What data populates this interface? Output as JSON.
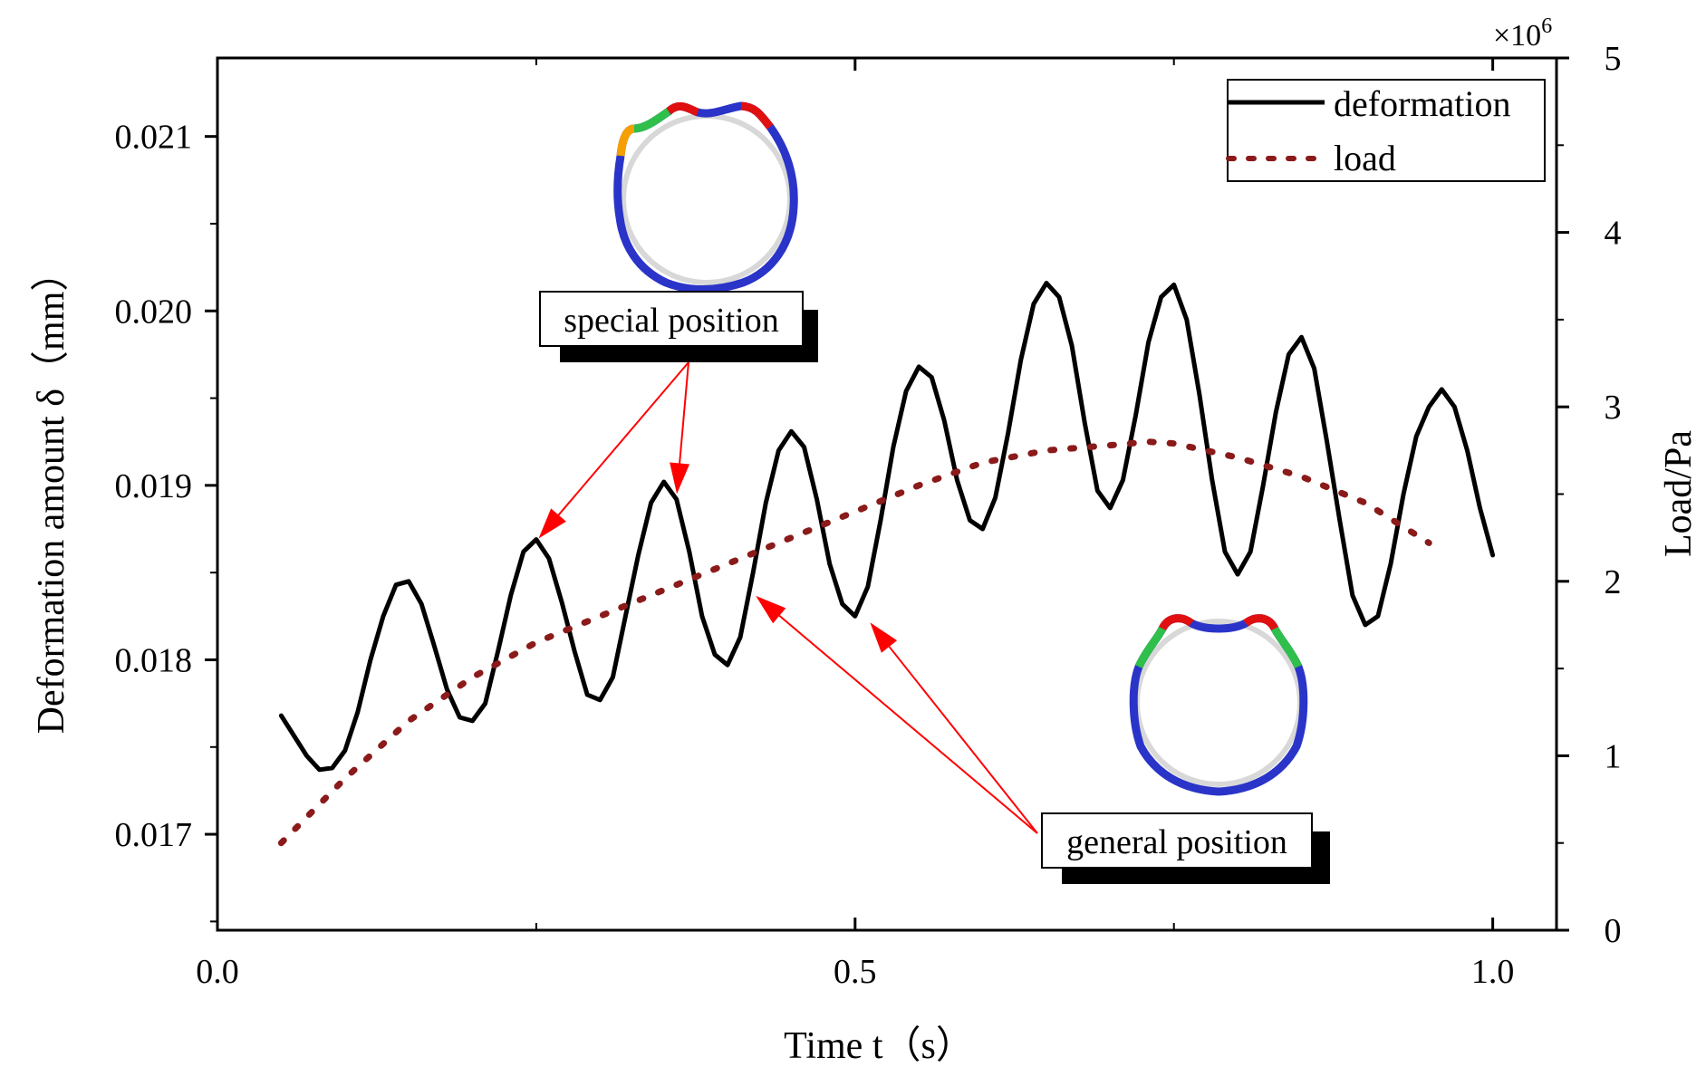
{
  "chart_data": {
    "type": "line",
    "title": "",
    "xlabel": "Time t（s）",
    "ylabel": "Deformation amount δ（mm）",
    "y2label": "Load/Pa",
    "y2_multiplier": "×10",
    "y2_multiplier_exp": "6",
    "xlim": [
      0.0,
      1.05
    ],
    "ylim": [
      0.01645,
      0.02145
    ],
    "y2lim": [
      0,
      5
    ],
    "xticks": [
      0.0,
      0.5,
      1.0
    ],
    "xtick_labels": [
      "0.0",
      "0.5",
      "1.0"
    ],
    "yticks": [
      0.017,
      0.018,
      0.019,
      0.02,
      0.021
    ],
    "ytick_labels": [
      "0.017",
      "0.018",
      "0.019",
      "0.020",
      "0.021"
    ],
    "y2ticks": [
      0,
      1,
      2,
      3,
      4,
      5
    ],
    "y2tick_labels": [
      "0",
      "1",
      "2",
      "3",
      "4",
      "5"
    ],
    "legend_position": "top-right",
    "series": [
      {
        "name": "deformation",
        "axis": "left",
        "style": "solid",
        "color": "#000000",
        "points": [
          [
            0.05,
            0.01768
          ],
          [
            0.07,
            0.01745
          ],
          [
            0.08,
            0.01737
          ],
          [
            0.09,
            0.01738
          ],
          [
            0.1,
            0.01748
          ],
          [
            0.11,
            0.0177
          ],
          [
            0.12,
            0.018
          ],
          [
            0.13,
            0.01825
          ],
          [
            0.14,
            0.01843
          ],
          [
            0.15,
            0.01845
          ],
          [
            0.16,
            0.01832
          ],
          [
            0.17,
            0.01808
          ],
          [
            0.18,
            0.01783
          ],
          [
            0.19,
            0.01767
          ],
          [
            0.2,
            0.01765
          ],
          [
            0.21,
            0.01775
          ],
          [
            0.22,
            0.01805
          ],
          [
            0.23,
            0.01837
          ],
          [
            0.24,
            0.01862
          ],
          [
            0.25,
            0.01869
          ],
          [
            0.26,
            0.01858
          ],
          [
            0.27,
            0.01833
          ],
          [
            0.28,
            0.01805
          ],
          [
            0.29,
            0.0178
          ],
          [
            0.3,
            0.01777
          ],
          [
            0.31,
            0.0179
          ],
          [
            0.32,
            0.01825
          ],
          [
            0.33,
            0.0186
          ],
          [
            0.34,
            0.0189
          ],
          [
            0.35,
            0.01902
          ],
          [
            0.36,
            0.01892
          ],
          [
            0.37,
            0.01862
          ],
          [
            0.38,
            0.01825
          ],
          [
            0.39,
            0.01803
          ],
          [
            0.4,
            0.01797
          ],
          [
            0.41,
            0.01813
          ],
          [
            0.42,
            0.0185
          ],
          [
            0.43,
            0.0189
          ],
          [
            0.44,
            0.0192
          ],
          [
            0.45,
            0.01931
          ],
          [
            0.46,
            0.01922
          ],
          [
            0.47,
            0.01892
          ],
          [
            0.48,
            0.01855
          ],
          [
            0.49,
            0.01832
          ],
          [
            0.5,
            0.01825
          ],
          [
            0.51,
            0.01842
          ],
          [
            0.52,
            0.0188
          ],
          [
            0.53,
            0.01922
          ],
          [
            0.54,
            0.01954
          ],
          [
            0.55,
            0.01968
          ],
          [
            0.56,
            0.01962
          ],
          [
            0.57,
            0.01937
          ],
          [
            0.58,
            0.01903
          ],
          [
            0.59,
            0.0188
          ],
          [
            0.6,
            0.01875
          ],
          [
            0.61,
            0.01893
          ],
          [
            0.62,
            0.0193
          ],
          [
            0.63,
            0.01972
          ],
          [
            0.64,
            0.02004
          ],
          [
            0.65,
            0.02016
          ],
          [
            0.66,
            0.02008
          ],
          [
            0.67,
            0.0198
          ],
          [
            0.68,
            0.01936
          ],
          [
            0.69,
            0.01897
          ],
          [
            0.7,
            0.01887
          ],
          [
            0.71,
            0.01903
          ],
          [
            0.72,
            0.0194
          ],
          [
            0.73,
            0.01982
          ],
          [
            0.74,
            0.02008
          ],
          [
            0.75,
            0.02015
          ],
          [
            0.76,
            0.01995
          ],
          [
            0.77,
            0.01952
          ],
          [
            0.78,
            0.01903
          ],
          [
            0.79,
            0.01862
          ],
          [
            0.8,
            0.01849
          ],
          [
            0.81,
            0.01862
          ],
          [
            0.82,
            0.019
          ],
          [
            0.83,
            0.01942
          ],
          [
            0.84,
            0.01975
          ],
          [
            0.85,
            0.01985
          ],
          [
            0.86,
            0.01967
          ],
          [
            0.87,
            0.01925
          ],
          [
            0.88,
            0.0188
          ],
          [
            0.89,
            0.01837
          ],
          [
            0.9,
            0.0182
          ],
          [
            0.91,
            0.01825
          ],
          [
            0.92,
            0.01855
          ],
          [
            0.93,
            0.01895
          ],
          [
            0.94,
            0.01928
          ],
          [
            0.95,
            0.01945
          ],
          [
            0.96,
            0.01955
          ],
          [
            0.97,
            0.01945
          ],
          [
            0.98,
            0.0192
          ],
          [
            0.99,
            0.01887
          ],
          [
            1.0,
            0.0186
          ]
        ]
      },
      {
        "name": "load",
        "axis": "right",
        "style": "dotted",
        "color": "#8b1a1a",
        "points": [
          [
            0.05,
            0.5
          ],
          [
            0.1,
            0.87
          ],
          [
            0.15,
            1.2
          ],
          [
            0.2,
            1.45
          ],
          [
            0.25,
            1.65
          ],
          [
            0.3,
            1.8
          ],
          [
            0.35,
            1.95
          ],
          [
            0.4,
            2.1
          ],
          [
            0.45,
            2.25
          ],
          [
            0.5,
            2.4
          ],
          [
            0.55,
            2.55
          ],
          [
            0.6,
            2.68
          ],
          [
            0.65,
            2.75
          ],
          [
            0.7,
            2.78
          ],
          [
            0.73,
            2.8
          ],
          [
            0.75,
            2.79
          ],
          [
            0.8,
            2.71
          ],
          [
            0.85,
            2.6
          ],
          [
            0.9,
            2.45
          ],
          [
            0.95,
            2.22
          ]
        ]
      }
    ],
    "annotations": [
      {
        "label": "special position",
        "targets": [
          [
            0.25,
            0.01868
          ],
          [
            0.36,
            0.01893
          ]
        ]
      },
      {
        "label": "general position",
        "targets": [
          [
            0.42,
            0.01838
          ],
          [
            0.51,
            0.01823
          ]
        ]
      }
    ],
    "insets": [
      "special-position-deformed-ring",
      "general-position-deformed-ring"
    ]
  },
  "colors": {
    "arrow": "#ff0000",
    "ring_base": "#2a34c8",
    "ring_hot": "#e01010"
  }
}
